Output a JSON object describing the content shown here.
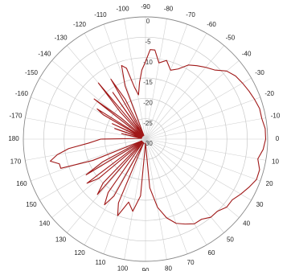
{
  "chart_data": {
    "type": "line",
    "subtype": "polar",
    "title": "",
    "angle_unit": "deg",
    "angle_zero_direction": "right",
    "angle_labels": [
      {
        "text": "-90",
        "angle": -90
      },
      {
        "text": "-80",
        "angle": -80
      },
      {
        "text": "-70",
        "angle": -70
      },
      {
        "text": "-60",
        "angle": -60
      },
      {
        "text": "-50",
        "angle": -50
      },
      {
        "text": "-40",
        "angle": -40
      },
      {
        "text": "-30",
        "angle": -30
      },
      {
        "text": "-20",
        "angle": -20
      },
      {
        "text": "-10",
        "angle": -10
      },
      {
        "text": "0",
        "angle": 0
      },
      {
        "text": "10",
        "angle": 10
      },
      {
        "text": "20",
        "angle": 20
      },
      {
        "text": "30",
        "angle": 30
      },
      {
        "text": "40",
        "angle": 40
      },
      {
        "text": "50",
        "angle": 50
      },
      {
        "text": "60",
        "angle": 60
      },
      {
        "text": "70",
        "angle": 70
      },
      {
        "text": "80",
        "angle": 80
      },
      {
        "text": "90",
        "angle": 90
      },
      {
        "text": "100",
        "angle": 100
      },
      {
        "text": "110",
        "angle": 110
      },
      {
        "text": "120",
        "angle": 120
      },
      {
        "text": "130",
        "angle": 130
      },
      {
        "text": "140",
        "angle": 140
      },
      {
        "text": "150",
        "angle": 150
      },
      {
        "text": "160",
        "angle": 160
      },
      {
        "text": "170",
        "angle": 170
      },
      {
        "text": "180",
        "angle": 180
      },
      {
        "text": "-170",
        "angle": -170
      },
      {
        "text": "-160",
        "angle": -160
      },
      {
        "text": "-150",
        "angle": -150
      },
      {
        "text": "-140",
        "angle": -140
      },
      {
        "text": "-130",
        "angle": -130
      },
      {
        "text": "-120",
        "angle": -120
      },
      {
        "text": "-110",
        "angle": -110
      },
      {
        "text": "-100",
        "angle": -100
      }
    ],
    "radial_ticks": [
      0,
      -5,
      -10,
      -15,
      -20,
      -25,
      -30
    ],
    "radial_tick_labels": [
      "0",
      "-5",
      "-10",
      "-15",
      "-20",
      "-25",
      "-30"
    ],
    "radial_range": [
      -30,
      0
    ],
    "grid": true,
    "series": [
      {
        "color": "#a01818",
        "angles": [
          -180,
          -170,
          -167,
          -164,
          -161,
          -158,
          -155,
          -152,
          -150,
          -148,
          -145,
          -142,
          -139,
          -136,
          -133,
          -130,
          -127,
          -125,
          -123,
          -120,
          -117,
          -114,
          -111,
          -108,
          -105,
          -102,
          -99,
          -96,
          -93,
          -90,
          -87,
          -84,
          -80,
          -75,
          -70,
          -65,
          -60,
          -55,
          -50,
          -45,
          -40,
          -35,
          -30,
          -25,
          -20,
          -15,
          -10,
          -5,
          0,
          5,
          10,
          15,
          20,
          25,
          30,
          35,
          40,
          45,
          50,
          55,
          60,
          65,
          70,
          75,
          80,
          85,
          90,
          95,
          100,
          105,
          110,
          113,
          116,
          119,
          122,
          125,
          128,
          131,
          134,
          137,
          140,
          143,
          146,
          149,
          152,
          155,
          158,
          161,
          164,
          167,
          170,
          173,
          176,
          180
        ],
        "values": [
          -19,
          -29,
          -24,
          -29,
          -22,
          -29,
          -21,
          -29,
          -18,
          -16,
          -29,
          -14,
          -22,
          -29,
          -21,
          -12,
          -29,
          -16,
          -29,
          -13,
          -19,
          -29,
          -16,
          -11,
          -12,
          -17,
          -19,
          -16,
          -13,
          -11,
          -8,
          -8,
          -11,
          -10,
          -12,
          -11,
          -9,
          -8,
          -7,
          -6,
          -4,
          -3,
          -2.5,
          -2,
          -1.5,
          -1,
          -1,
          -0.5,
          -0.5,
          -1,
          -2,
          -1,
          -1,
          -2,
          -3,
          -4,
          -4,
          -5,
          -5,
          -6,
          -6,
          -7,
          -8,
          -10,
          -13,
          -18,
          -29,
          -16,
          -12,
          -14,
          -10,
          -13,
          -29,
          -14,
          -11,
          -14,
          -29,
          -12,
          -15,
          -29,
          -15,
          -12,
          -29,
          -13,
          -18,
          -29,
          -16,
          -8,
          -8,
          -6,
          -8,
          -11,
          -16,
          -19
        ]
      }
    ]
  }
}
